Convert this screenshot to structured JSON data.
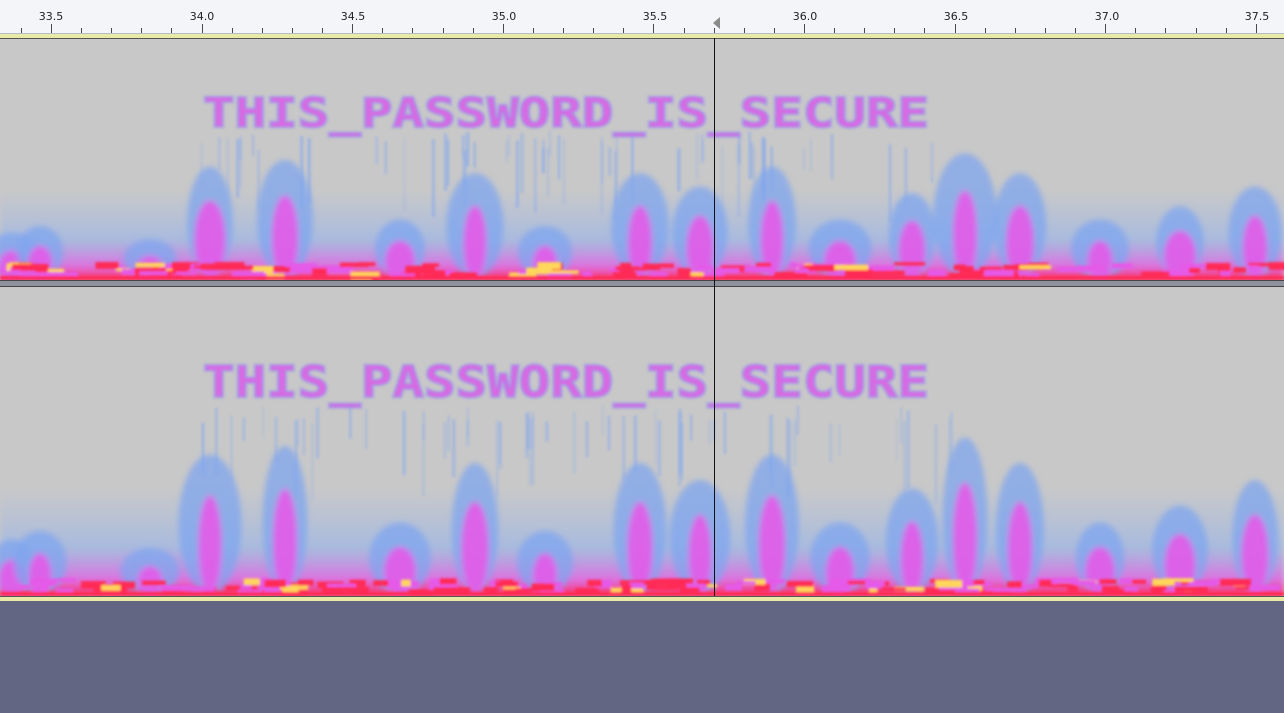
{
  "ruler": {
    "labels": [
      "33.5",
      "34.0",
      "34.5",
      "35.0",
      "35.5",
      "36.0",
      "36.5",
      "37.0",
      "37.5"
    ]
  },
  "spectrogram": {
    "hidden_text": "THIS_PASSWORD_IS_SECURE",
    "colors": {
      "background": "#c8c8c8",
      "low": "#7fa6ef",
      "mid": "#e55ae8",
      "high": "#ff2a55",
      "peak": "#ffd75a"
    }
  },
  "track_area": {
    "background": "#636682"
  }
}
